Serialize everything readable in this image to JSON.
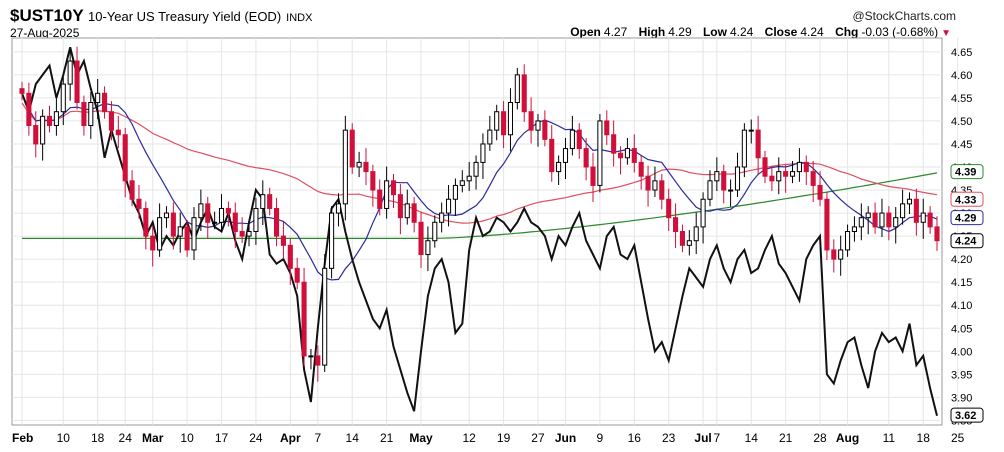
{
  "header": {
    "symbol": "$UST10Y",
    "description": "10-Year US Treasury Yield (EOD)",
    "exchange": "INDX",
    "date": "27-Aug-2025",
    "credit": "@StockCharts.com",
    "open_label": "Open",
    "open_value": "4.27",
    "high_label": "High",
    "high_value": "4.29",
    "low_label": "Low",
    "low_value": "4.24",
    "close_label": "Close",
    "close_value": "4.24",
    "chg_label": "Chg",
    "chg_value": "-0.03 (-0.68%)"
  },
  "colors": {
    "up": "#000000",
    "down": "#d0103a",
    "ma20": "#2b2ba0",
    "ma50": "#e05060",
    "ma200": "#2a8a2a",
    "compare": "#111111"
  },
  "chart_data": {
    "type": "candlestick",
    "title": "$UST10Y 10-Year US Treasury Yield (EOD)",
    "ylim": [
      3.84,
      4.68
    ],
    "y_ticks": [
      "4.65",
      "4.60",
      "4.55",
      "4.50",
      "4.45",
      "4.40",
      "4.35",
      "4.30",
      "4.25",
      "4.20",
      "4.15",
      "4.10",
      "4.05",
      "4.00",
      "3.95",
      "3.90",
      "3.85"
    ],
    "x_ticks": [
      {
        "label": "Feb",
        "bold": true,
        "pos": 0
      },
      {
        "label": "10",
        "bold": false,
        "pos": 6
      },
      {
        "label": "18",
        "bold": false,
        "pos": 11
      },
      {
        "label": "24",
        "bold": false,
        "pos": 15
      },
      {
        "label": "Mar",
        "bold": true,
        "pos": 19
      },
      {
        "label": "10",
        "bold": false,
        "pos": 24
      },
      {
        "label": "17",
        "bold": false,
        "pos": 29
      },
      {
        "label": "24",
        "bold": false,
        "pos": 34
      },
      {
        "label": "Apr",
        "bold": true,
        "pos": 39
      },
      {
        "label": "7",
        "bold": false,
        "pos": 43
      },
      {
        "label": "14",
        "bold": false,
        "pos": 48
      },
      {
        "label": "21",
        "bold": false,
        "pos": 53
      },
      {
        "label": "May",
        "bold": true,
        "pos": 58
      },
      {
        "label": "12",
        "bold": false,
        "pos": 65
      },
      {
        "label": "19",
        "bold": false,
        "pos": 70
      },
      {
        "label": "27",
        "bold": false,
        "pos": 75
      },
      {
        "label": "Jun",
        "bold": true,
        "pos": 79
      },
      {
        "label": "9",
        "bold": false,
        "pos": 84
      },
      {
        "label": "16",
        "bold": false,
        "pos": 89
      },
      {
        "label": "23",
        "bold": false,
        "pos": 94
      },
      {
        "label": "Jul",
        "bold": true,
        "pos": 99
      },
      {
        "label": "7",
        "bold": false,
        "pos": 101
      },
      {
        "label": "14",
        "bold": false,
        "pos": 106
      },
      {
        "label": "21",
        "bold": false,
        "pos": 111
      },
      {
        "label": "28",
        "bold": false,
        "pos": 116
      },
      {
        "label": "Aug",
        "bold": true,
        "pos": 120
      },
      {
        "label": "11",
        "bold": false,
        "pos": 126
      },
      {
        "label": "18",
        "bold": false,
        "pos": 131
      },
      {
        "label": "25",
        "bold": false,
        "pos": 136
      }
    ],
    "closes": [
      4.56,
      4.49,
      4.45,
      4.51,
      4.49,
      4.52,
      4.58,
      4.63,
      4.54,
      4.49,
      4.54,
      4.56,
      4.52,
      4.48,
      4.47,
      4.37,
      4.33,
      4.31,
      4.25,
      4.22,
      4.29,
      4.3,
      4.25,
      4.27,
      4.22,
      4.29,
      4.32,
      4.28,
      4.28,
      4.31,
      4.3,
      4.26,
      4.25,
      4.26,
      4.31,
      4.34,
      4.31,
      4.25,
      4.23,
      4.18,
      4.15,
      3.99,
      3.99,
      3.97,
      4.18,
      4.3,
      4.32,
      4.48,
      4.4,
      4.41,
      4.39,
      4.35,
      4.31,
      4.37,
      4.34,
      4.29,
      4.32,
      4.28,
      4.21,
      4.24,
      4.28,
      4.3,
      4.33,
      4.36,
      4.37,
      4.38,
      4.41,
      4.45,
      4.48,
      4.52,
      4.47,
      4.54,
      4.6,
      4.52,
      4.48,
      4.5,
      4.46,
      4.39,
      4.41,
      4.44,
      4.48,
      4.44,
      4.4,
      4.36,
      4.5,
      4.47,
      4.43,
      4.42,
      4.44,
      4.41,
      4.38,
      4.35,
      4.37,
      4.33,
      4.29,
      4.26,
      4.23,
      4.24,
      4.27,
      4.33,
      4.37,
      4.39,
      4.35,
      4.35,
      4.4,
      4.48,
      4.48,
      4.42,
      4.38,
      4.37,
      4.39,
      4.38,
      4.39,
      4.41,
      4.39,
      4.36,
      4.33,
      4.22,
      4.2,
      4.22,
      4.26,
      4.27,
      4.29,
      4.3,
      4.27,
      4.3,
      4.27,
      4.29,
      4.32,
      4.33,
      4.28,
      4.3,
      4.27,
      4.24
    ]
  },
  "overlays": {
    "ma_labels": [
      "4.39",
      "4.33",
      "4.29",
      "4.24"
    ],
    "compare_label": "3.62",
    "compare_series": [
      4.56,
      4.52,
      4.58,
      4.6,
      4.62,
      4.55,
      4.6,
      4.66,
      4.6,
      4.63,
      4.57,
      4.52,
      4.42,
      4.48,
      4.43,
      4.38,
      4.33,
      4.3,
      4.25,
      4.28,
      4.22,
      4.25,
      4.23,
      4.26,
      4.28,
      4.24,
      4.28,
      4.31,
      4.27,
      4.26,
      4.3,
      4.24,
      4.2,
      4.28,
      4.35,
      4.33,
      4.21,
      4.19,
      4.2,
      4.17,
      4.12,
      3.96,
      3.89,
      4.05,
      4.19,
      4.31,
      4.33,
      4.26,
      4.2,
      4.15,
      4.11,
      4.07,
      4.05,
      4.09,
      4.01,
      3.96,
      3.91,
      3.87,
      4.0,
      4.12,
      4.18,
      4.2,
      4.15,
      4.04,
      4.06,
      4.22,
      4.29,
      4.25,
      4.26,
      4.29,
      4.28,
      4.26,
      4.28,
      4.31,
      4.28,
      4.27,
      4.25,
      4.2,
      4.25,
      4.23,
      4.27,
      4.3,
      4.24,
      4.21,
      4.18,
      4.25,
      4.27,
      4.21,
      4.2,
      4.23,
      4.15,
      4.07,
      4.0,
      4.02,
      3.98,
      4.05,
      4.12,
      4.18,
      4.16,
      4.14,
      4.2,
      4.23,
      4.18,
      4.15,
      4.2,
      4.22,
      4.17,
      4.18,
      4.22,
      4.25,
      4.19,
      4.17,
      4.14,
      4.11,
      4.2,
      4.23,
      4.25,
      3.95,
      3.93,
      3.98,
      4.02,
      4.03,
      3.97,
      3.92,
      4.0,
      4.04,
      4.02,
      4.03,
      4.0,
      4.06,
      3.97,
      3.99,
      3.92,
      3.86
    ]
  }
}
